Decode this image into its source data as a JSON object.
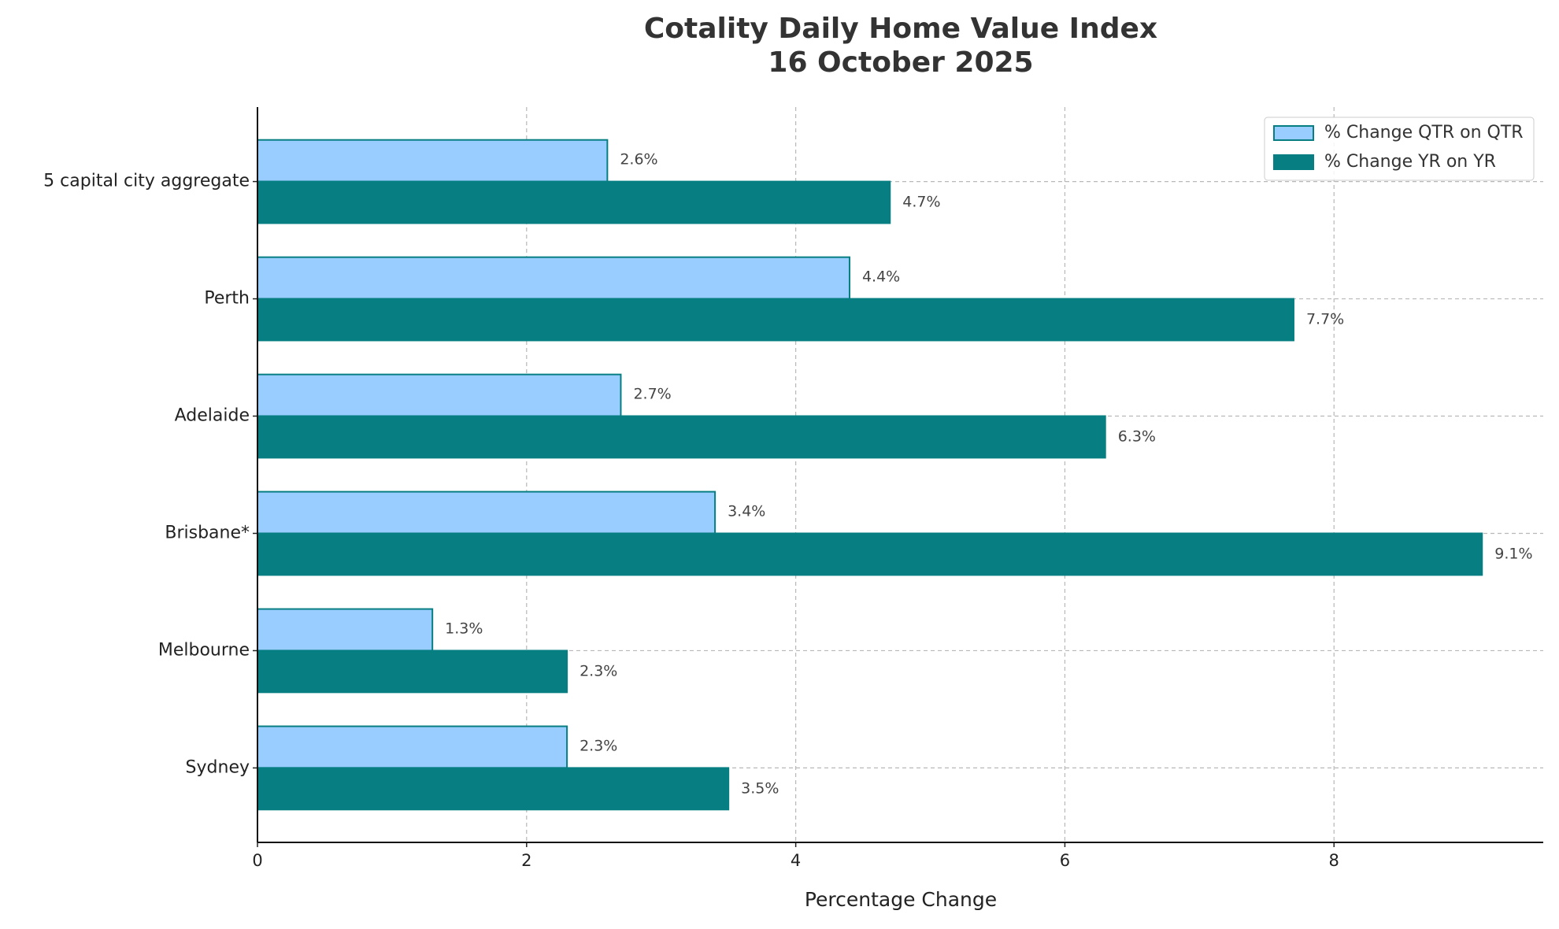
{
  "chart_data": {
    "type": "hbar",
    "title": "Cotality Daily Home Value Index",
    "subtitle": "16 October 2025",
    "x_label": "Percentage Change",
    "categories": [
      "5 capital city aggregate",
      "Perth",
      "Adelaide",
      "Brisbane*",
      "Melbourne",
      "Sydney"
    ],
    "series": [
      {
        "name": "% Change QTR on QTR",
        "color": "#99ccff",
        "edge_color": "#077f82",
        "values": [
          2.6,
          4.4,
          2.7,
          3.4,
          1.3,
          2.3
        ],
        "value_labels": [
          "2.6%",
          "4.4%",
          "2.7%",
          "3.4%",
          "1.3%",
          "2.3%"
        ]
      },
      {
        "name": "% Change YR on YR",
        "color": "#077f82",
        "edge_color": "#077f82",
        "values": [
          4.7,
          7.7,
          6.3,
          9.1,
          2.3,
          3.5
        ],
        "value_labels": [
          "4.7%",
          "7.7%",
          "6.3%",
          "9.1%",
          "2.3%",
          "3.5%"
        ]
      }
    ],
    "xlim": [
      0,
      9.555
    ],
    "xticks": [
      0,
      2,
      4,
      6,
      8
    ],
    "grid": true,
    "legend": "upper right"
  }
}
